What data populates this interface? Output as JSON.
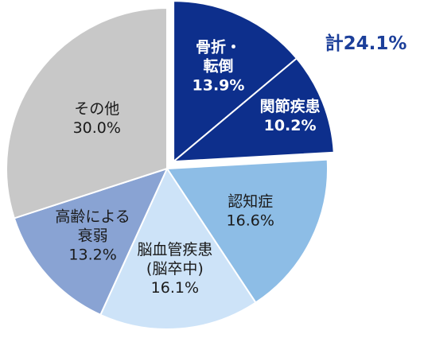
{
  "chart_data": {
    "type": "pie",
    "slices": [
      {
        "label_lines": [
          "骨折・",
          "転倒"
        ],
        "value_text": "13.9%",
        "value": 13.9,
        "color": "#0d2f8c",
        "exploded": true,
        "text_style": "dark"
      },
      {
        "label_lines": [
          "関節疾患"
        ],
        "value_text": "10.2%",
        "value": 10.2,
        "color": "#0d2f8c",
        "exploded": true,
        "text_style": "dark"
      },
      {
        "label_lines": [
          "認知症"
        ],
        "value_text": "16.6%",
        "value": 16.6,
        "color": "#8dbde6",
        "exploded": false,
        "text_style": "light"
      },
      {
        "label_lines": [
          "脳血管疾患",
          "(脳卒中)"
        ],
        "value_text": "16.1%",
        "value": 16.1,
        "color": "#cde3f8",
        "exploded": false,
        "text_style": "light"
      },
      {
        "label_lines": [
          "高齢による",
          "衰弱"
        ],
        "value_text": "13.2%",
        "value": 13.2,
        "color": "#89a3d3",
        "exploded": false,
        "text_style": "light"
      },
      {
        "label_lines": [
          "その他"
        ],
        "value_text": "30.0%",
        "value": 30.0,
        "color": "#c8c8c8",
        "exploded": false,
        "text_style": "light"
      }
    ],
    "annotation": "計24.1%",
    "annotation_color": "#1c3f9a"
  }
}
